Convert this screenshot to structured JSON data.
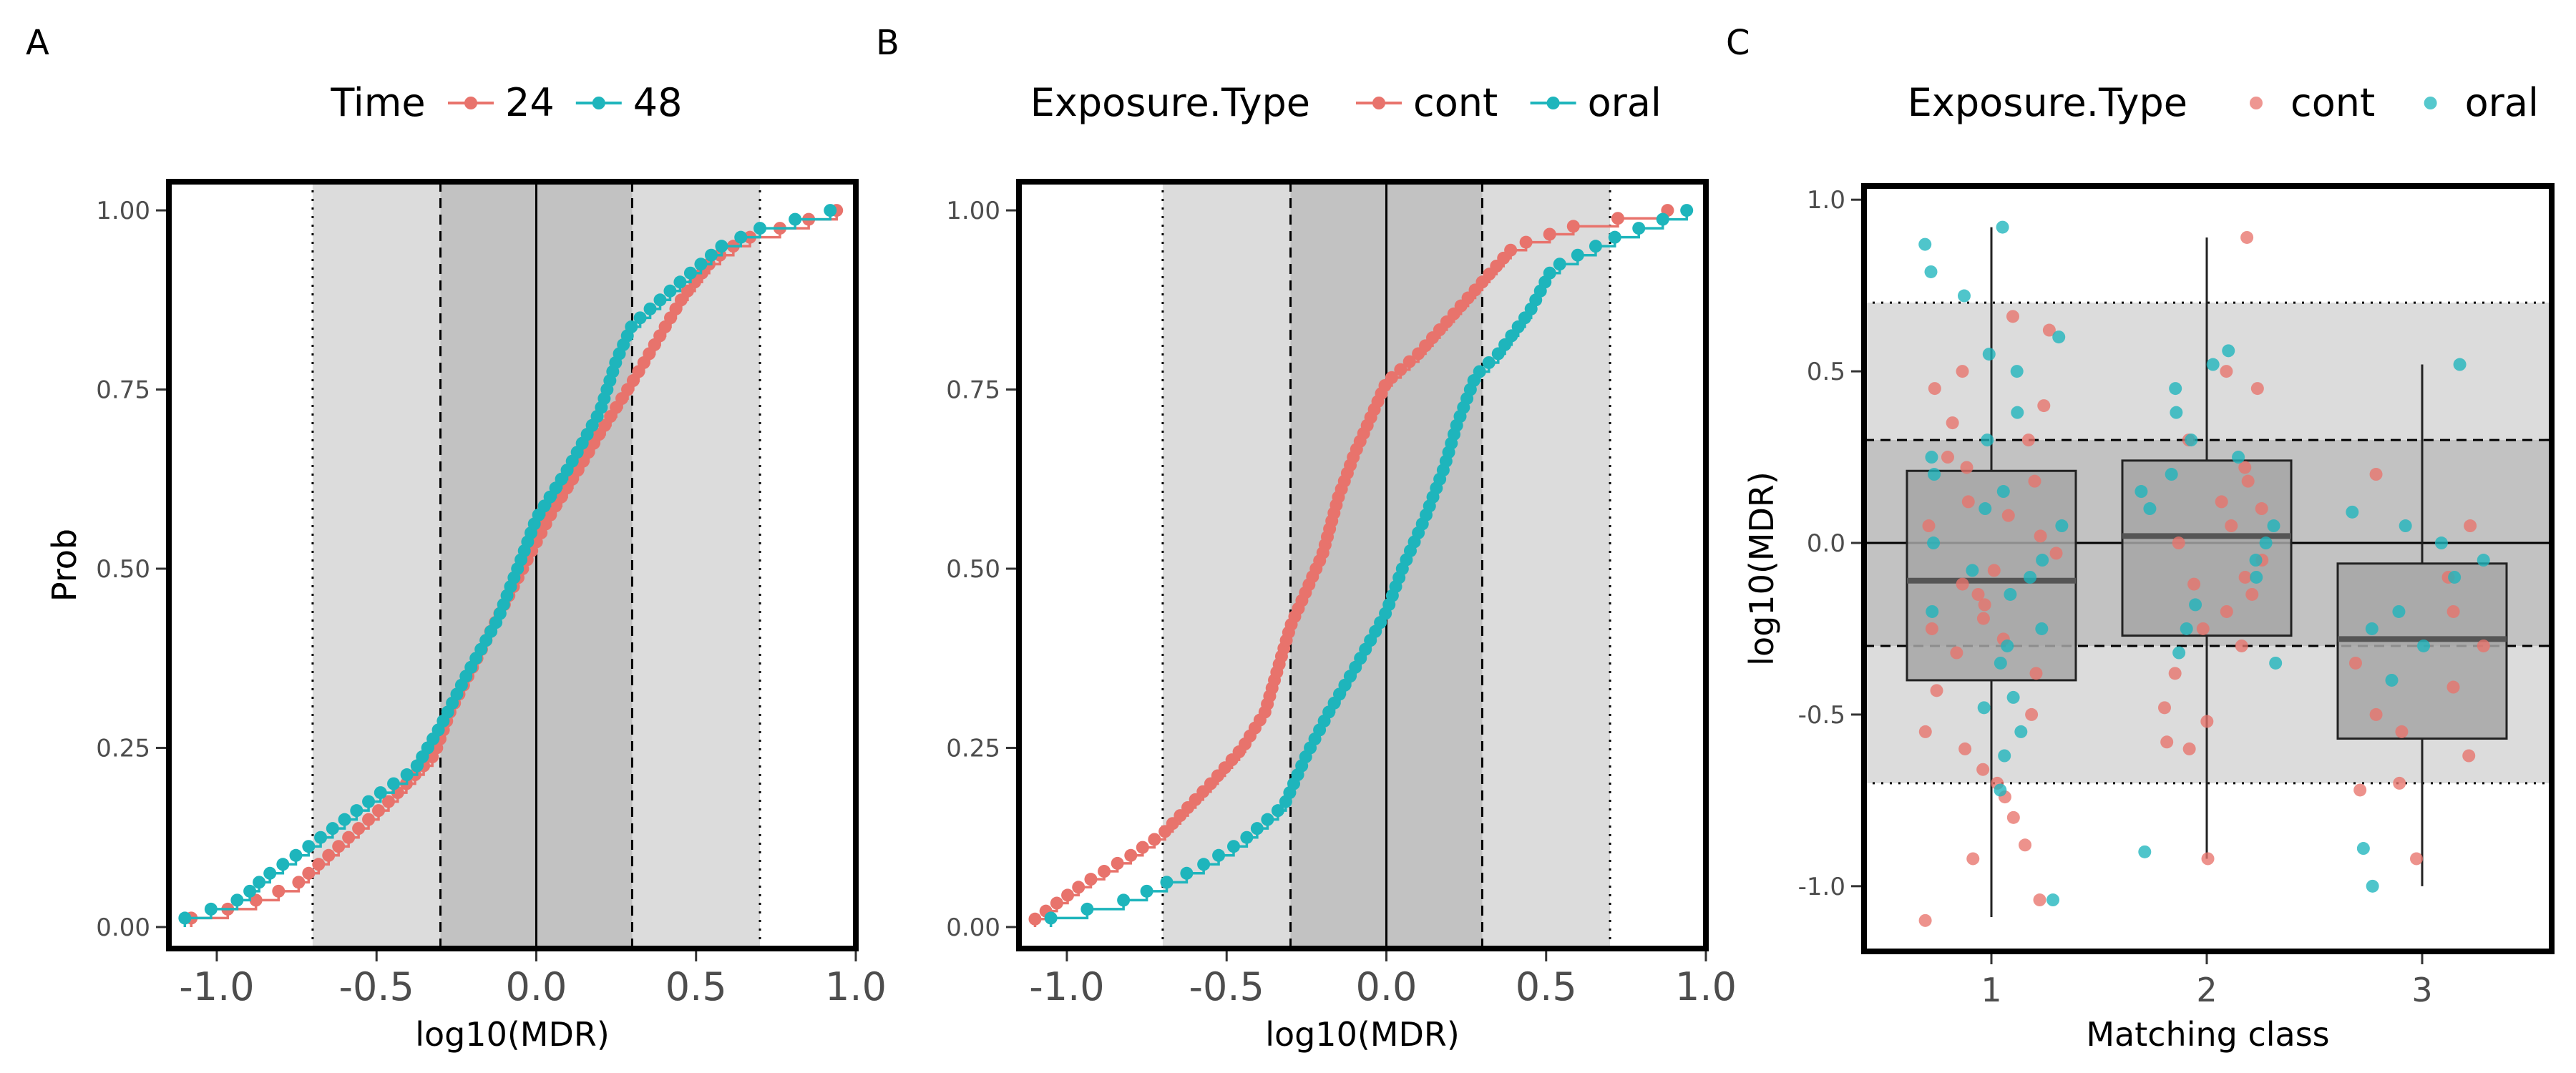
{
  "colors": {
    "red": "#E8736C",
    "teal": "#1EB5BC",
    "band_outer": "#DCDCDC",
    "band_inner": "#C2C2C2",
    "box_fill": "#A6A6A6"
  },
  "panels": {
    "A": {
      "tag": "A",
      "legend_title": "Time",
      "legend": [
        "24",
        "48"
      ],
      "xlabel": "log10(MDR)",
      "ylabel": "Prob",
      "x_ticks": [
        "-1.0",
        "-0.5",
        "0.0",
        "0.5",
        "1.0"
      ],
      "y_ticks": [
        "0.00",
        "0.25",
        "0.50",
        "0.75",
        "1.00"
      ]
    },
    "B": {
      "tag": "B",
      "legend_title": "Exposure.Type",
      "legend": [
        "cont",
        "oral"
      ],
      "xlabel": "log10(MDR)",
      "ylabel": "Prob",
      "x_ticks": [
        "-1.0",
        "-0.5",
        "0.0",
        "0.5",
        "1.0"
      ],
      "y_ticks": [
        "0.00",
        "0.25",
        "0.50",
        "0.75",
        "1.00"
      ]
    },
    "C": {
      "tag": "C",
      "legend_title": "Exposure.Type",
      "legend": [
        "cont",
        "oral"
      ],
      "xlabel": "Matching class",
      "ylabel": "log10(MDR)",
      "x_ticks": [
        "1",
        "2",
        "3"
      ],
      "y_ticks": [
        "-1.0",
        "-0.5",
        "0.0",
        "0.5",
        "1.0"
      ]
    }
  },
  "chart_data": [
    {
      "panel": "A",
      "type": "line",
      "subtype": "ecdf-step",
      "xlim": [
        -1.15,
        1.0
      ],
      "ylim": [
        -0.03,
        1.04
      ],
      "reference_lines": {
        "solid": [
          0.0
        ],
        "dashed": [
          -0.3,
          0.3
        ],
        "dotted": [
          -0.7,
          0.7
        ]
      },
      "shaded_bands": [
        [
          -0.7,
          0.7
        ],
        [
          -0.3,
          0.3
        ]
      ],
      "series": [
        {
          "name": "24",
          "color": "#E8736C",
          "n": 80,
          "ecdf": [
            [
              -1.08,
              0.0125
            ],
            [
              -0.92,
              0.03
            ],
            [
              -0.75,
              0.06
            ],
            [
              -0.6,
              0.12
            ],
            [
              -0.45,
              0.18
            ],
            [
              -0.32,
              0.24
            ],
            [
              -0.27,
              0.3
            ],
            [
              -0.18,
              0.38
            ],
            [
              -0.1,
              0.45
            ],
            [
              -0.02,
              0.52
            ],
            [
              0.05,
              0.58
            ],
            [
              0.12,
              0.63
            ],
            [
              0.2,
              0.69
            ],
            [
              0.3,
              0.76
            ],
            [
              0.38,
              0.82
            ],
            [
              0.46,
              0.88
            ],
            [
              0.55,
              0.93
            ],
            [
              0.65,
              0.96
            ],
            [
              0.8,
              0.98
            ],
            [
              0.94,
              1.0
            ]
          ]
        },
        {
          "name": "48",
          "color": "#1EB5BC",
          "n": 80,
          "ecdf": [
            [
              -1.1,
              0.0125
            ],
            [
              -0.92,
              0.04
            ],
            [
              -0.85,
              0.07
            ],
            [
              -0.72,
              0.11
            ],
            [
              -0.6,
              0.15
            ],
            [
              -0.48,
              0.19
            ],
            [
              -0.38,
              0.22
            ],
            [
              -0.3,
              0.28
            ],
            [
              -0.22,
              0.35
            ],
            [
              -0.12,
              0.43
            ],
            [
              -0.05,
              0.51
            ],
            [
              0.0,
              0.57
            ],
            [
              0.1,
              0.64
            ],
            [
              0.2,
              0.72
            ],
            [
              0.25,
              0.79
            ],
            [
              0.3,
              0.84
            ],
            [
              0.45,
              0.9
            ],
            [
              0.58,
              0.95
            ],
            [
              0.7,
              0.975
            ],
            [
              0.92,
              1.0
            ]
          ]
        }
      ]
    },
    {
      "panel": "B",
      "type": "line",
      "subtype": "ecdf-step",
      "xlim": [
        -1.15,
        1.0
      ],
      "ylim": [
        -0.03,
        1.04
      ],
      "reference_lines": {
        "solid": [
          0.0
        ],
        "dashed": [
          -0.3,
          0.3
        ],
        "dotted": [
          -0.7,
          0.7
        ]
      },
      "shaded_bands": [
        [
          -0.7,
          0.7
        ],
        [
          -0.3,
          0.3
        ]
      ],
      "series": [
        {
          "name": "cont",
          "color": "#E8736C",
          "n": 90,
          "ecdf": [
            [
              -1.1,
              0.011
            ],
            [
              -0.95,
              0.06
            ],
            [
              -0.8,
              0.1
            ],
            [
              -0.7,
              0.13
            ],
            [
              -0.55,
              0.2
            ],
            [
              -0.45,
              0.25
            ],
            [
              -0.38,
              0.3
            ],
            [
              -0.3,
              0.42
            ],
            [
              -0.25,
              0.47
            ],
            [
              -0.2,
              0.52
            ],
            [
              -0.15,
              0.6
            ],
            [
              -0.1,
              0.66
            ],
            [
              -0.05,
              0.71
            ],
            [
              0.0,
              0.76
            ],
            [
              0.1,
              0.8
            ],
            [
              0.2,
              0.85
            ],
            [
              0.3,
              0.9
            ],
            [
              0.4,
              0.95
            ],
            [
              0.6,
              0.98
            ],
            [
              0.88,
              1.0
            ]
          ]
        },
        {
          "name": "oral",
          "color": "#1EB5BC",
          "n": 80,
          "ecdf": [
            [
              -1.05,
              0.0125
            ],
            [
              -0.8,
              0.04
            ],
            [
              -0.6,
              0.08
            ],
            [
              -0.45,
              0.12
            ],
            [
              -0.32,
              0.17
            ],
            [
              -0.25,
              0.24
            ],
            [
              -0.18,
              0.3
            ],
            [
              -0.1,
              0.36
            ],
            [
              -0.05,
              0.4
            ],
            [
              0.0,
              0.44
            ],
            [
              0.05,
              0.5
            ],
            [
              0.12,
              0.57
            ],
            [
              0.18,
              0.64
            ],
            [
              0.22,
              0.7
            ],
            [
              0.28,
              0.77
            ],
            [
              0.35,
              0.8
            ],
            [
              0.45,
              0.86
            ],
            [
              0.52,
              0.92
            ],
            [
              0.7,
              0.96
            ],
            [
              0.94,
              1.0
            ]
          ]
        }
      ]
    },
    {
      "panel": "C",
      "type": "scatter",
      "subtype": "boxplot-with-jitter",
      "categories": [
        "1",
        "2",
        "3"
      ],
      "ylim": [
        -1.2,
        1.05
      ],
      "reference_lines": {
        "solid": [
          0.0
        ],
        "dashed": [
          -0.3,
          0.3
        ],
        "dotted": [
          -0.7,
          0.7
        ]
      },
      "shaded_bands": [
        [
          -0.7,
          0.7
        ],
        [
          -0.3,
          0.3
        ]
      ],
      "boxes": [
        {
          "category": "1",
          "lower_whisker": -1.09,
          "q1": -0.4,
          "median": -0.11,
          "q3": 0.21,
          "upper_whisker": 0.92
        },
        {
          "category": "2",
          "lower_whisker": -0.92,
          "q1": -0.27,
          "median": 0.02,
          "q3": 0.24,
          "upper_whisker": 0.89
        },
        {
          "category": "3",
          "lower_whisker": -1.0,
          "q1": -0.57,
          "median": -0.28,
          "q3": -0.06,
          "upper_whisker": 0.52
        }
      ],
      "series": [
        {
          "name": "cont",
          "color": "#E8736C",
          "points": [
            [
              1,
              0.66
            ],
            [
              1,
              0.62
            ],
            [
              1,
              0.5
            ],
            [
              1,
              0.45
            ],
            [
              1,
              0.35
            ],
            [
              1,
              0.3
            ],
            [
              1,
              0.25
            ],
            [
              1,
              0.22
            ],
            [
              1,
              0.18
            ],
            [
              1,
              0.12
            ],
            [
              1,
              0.08
            ],
            [
              1,
              0.02
            ],
            [
              1,
              -0.03
            ],
            [
              1,
              -0.08
            ],
            [
              1,
              -0.12
            ],
            [
              1,
              -0.18
            ],
            [
              1,
              -0.22
            ],
            [
              1,
              -0.28
            ],
            [
              1,
              -0.32
            ],
            [
              1,
              -0.38
            ],
            [
              1,
              -0.43
            ],
            [
              1,
              -0.5
            ],
            [
              1,
              -0.55
            ],
            [
              1,
              -0.6
            ],
            [
              1,
              -0.66
            ],
            [
              1,
              -0.7
            ],
            [
              1,
              -0.74
            ],
            [
              1,
              -0.8
            ],
            [
              1,
              -0.88
            ],
            [
              1,
              -0.92
            ],
            [
              1,
              -1.04
            ],
            [
              1,
              -1.1
            ],
            [
              1,
              0.05
            ],
            [
              1,
              -0.15
            ],
            [
              1,
              0.4
            ],
            [
              1,
              -0.25
            ],
            [
              2,
              0.89
            ],
            [
              2,
              0.5
            ],
            [
              2,
              0.45
            ],
            [
              2,
              0.3
            ],
            [
              2,
              0.22
            ],
            [
              2,
              0.18
            ],
            [
              2,
              0.12
            ],
            [
              2,
              0.05
            ],
            [
              2,
              0.0
            ],
            [
              2,
              -0.05
            ],
            [
              2,
              -0.1
            ],
            [
              2,
              -0.15
            ],
            [
              2,
              -0.2
            ],
            [
              2,
              -0.25
            ],
            [
              2,
              -0.3
            ],
            [
              2,
              -0.38
            ],
            [
              2,
              -0.48
            ],
            [
              2,
              -0.52
            ],
            [
              2,
              -0.58
            ],
            [
              2,
              -0.6
            ],
            [
              2,
              -0.92
            ],
            [
              2,
              0.1
            ],
            [
              2,
              -0.12
            ],
            [
              3,
              0.2
            ],
            [
              3,
              -0.1
            ],
            [
              3,
              -0.2
            ],
            [
              3,
              -0.3
            ],
            [
              3,
              -0.35
            ],
            [
              3,
              -0.42
            ],
            [
              3,
              -0.5
            ],
            [
              3,
              -0.55
            ],
            [
              3,
              -0.62
            ],
            [
              3,
              -0.7
            ],
            [
              3,
              -0.72
            ],
            [
              3,
              -0.92
            ],
            [
              3,
              0.05
            ]
          ]
        },
        {
          "name": "oral",
          "color": "#1EB5BC",
          "points": [
            [
              1,
              0.92
            ],
            [
              1,
              0.87
            ],
            [
              1,
              0.79
            ],
            [
              1,
              0.72
            ],
            [
              1,
              0.6
            ],
            [
              1,
              0.55
            ],
            [
              1,
              0.5
            ],
            [
              1,
              0.38
            ],
            [
              1,
              0.3
            ],
            [
              1,
              0.2
            ],
            [
              1,
              0.15
            ],
            [
              1,
              0.1
            ],
            [
              1,
              0.05
            ],
            [
              1,
              0.0
            ],
            [
              1,
              -0.05
            ],
            [
              1,
              -0.1
            ],
            [
              1,
              -0.15
            ],
            [
              1,
              -0.2
            ],
            [
              1,
              -0.25
            ],
            [
              1,
              -0.3
            ],
            [
              1,
              -0.35
            ],
            [
              1,
              -0.45
            ],
            [
              1,
              -0.48
            ],
            [
              1,
              -0.55
            ],
            [
              1,
              -0.62
            ],
            [
              1,
              -0.72
            ],
            [
              1,
              -1.04
            ],
            [
              1,
              0.25
            ],
            [
              1,
              -0.08
            ],
            [
              2,
              0.56
            ],
            [
              2,
              0.52
            ],
            [
              2,
              0.45
            ],
            [
              2,
              0.38
            ],
            [
              2,
              0.3
            ],
            [
              2,
              0.25
            ],
            [
              2,
              0.2
            ],
            [
              2,
              0.15
            ],
            [
              2,
              0.1
            ],
            [
              2,
              0.05
            ],
            [
              2,
              0.0
            ],
            [
              2,
              -0.05
            ],
            [
              2,
              -0.1
            ],
            [
              2,
              -0.18
            ],
            [
              2,
              -0.25
            ],
            [
              2,
              -0.32
            ],
            [
              2,
              -0.35
            ],
            [
              2,
              -0.9
            ],
            [
              3,
              0.52
            ],
            [
              3,
              0.09
            ],
            [
              3,
              0.05
            ],
            [
              3,
              0.0
            ],
            [
              3,
              -0.05
            ],
            [
              3,
              -0.1
            ],
            [
              3,
              -0.2
            ],
            [
              3,
              -0.25
            ],
            [
              3,
              -0.3
            ],
            [
              3,
              -0.4
            ],
            [
              3,
              -0.89
            ],
            [
              3,
              -1.0
            ]
          ]
        }
      ]
    }
  ]
}
